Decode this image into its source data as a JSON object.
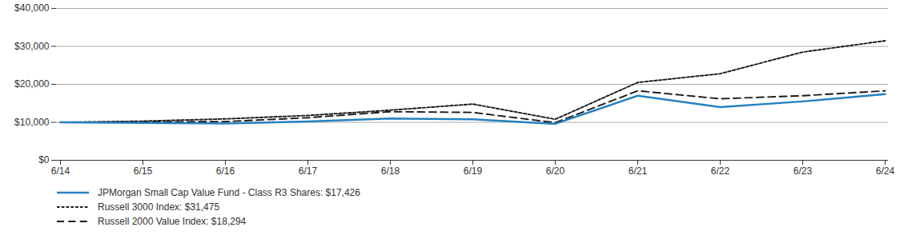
{
  "chart_data": {
    "type": "line",
    "categories": [
      "6/14",
      "6/15",
      "6/16",
      "6/17",
      "6/18",
      "6/19",
      "6/20",
      "6/21",
      "6/22",
      "6/23",
      "6/24"
    ],
    "series": [
      {
        "name": "JPMorgan Small Cap Value Fund - Class R3 Shares: $17,426",
        "color": "#2681be",
        "line_style": "solid",
        "values": [
          10000,
          9850,
          9700,
          10200,
          11000,
          10800,
          9600,
          17000,
          14000,
          15500,
          17426
        ]
      },
      {
        "name": "Russell 3000 Index: $31,475",
        "color": "#1a1a1a",
        "line_style": "dotted",
        "values": [
          10000,
          10300,
          10900,
          11800,
          13200,
          14800,
          10800,
          20500,
          22800,
          28500,
          31475
        ]
      },
      {
        "name": "Russell 2000 Value Index: $18,294",
        "color": "#1a1a1a",
        "line_style": "dashed",
        "values": [
          10000,
          10050,
          10200,
          11200,
          12800,
          12600,
          9900,
          18294,
          16200,
          17000,
          18294
        ]
      }
    ],
    "ylim": [
      0,
      40000
    ],
    "yticks": [
      {
        "value": 0,
        "label": "$0"
      },
      {
        "value": 10000,
        "label": "$10,000"
      },
      {
        "value": 20000,
        "label": "$20,000"
      },
      {
        "value": 30000,
        "label": "$30,000"
      },
      {
        "value": 40000,
        "label": "$40,000"
      }
    ],
    "grid": true,
    "legend": "lower left"
  }
}
